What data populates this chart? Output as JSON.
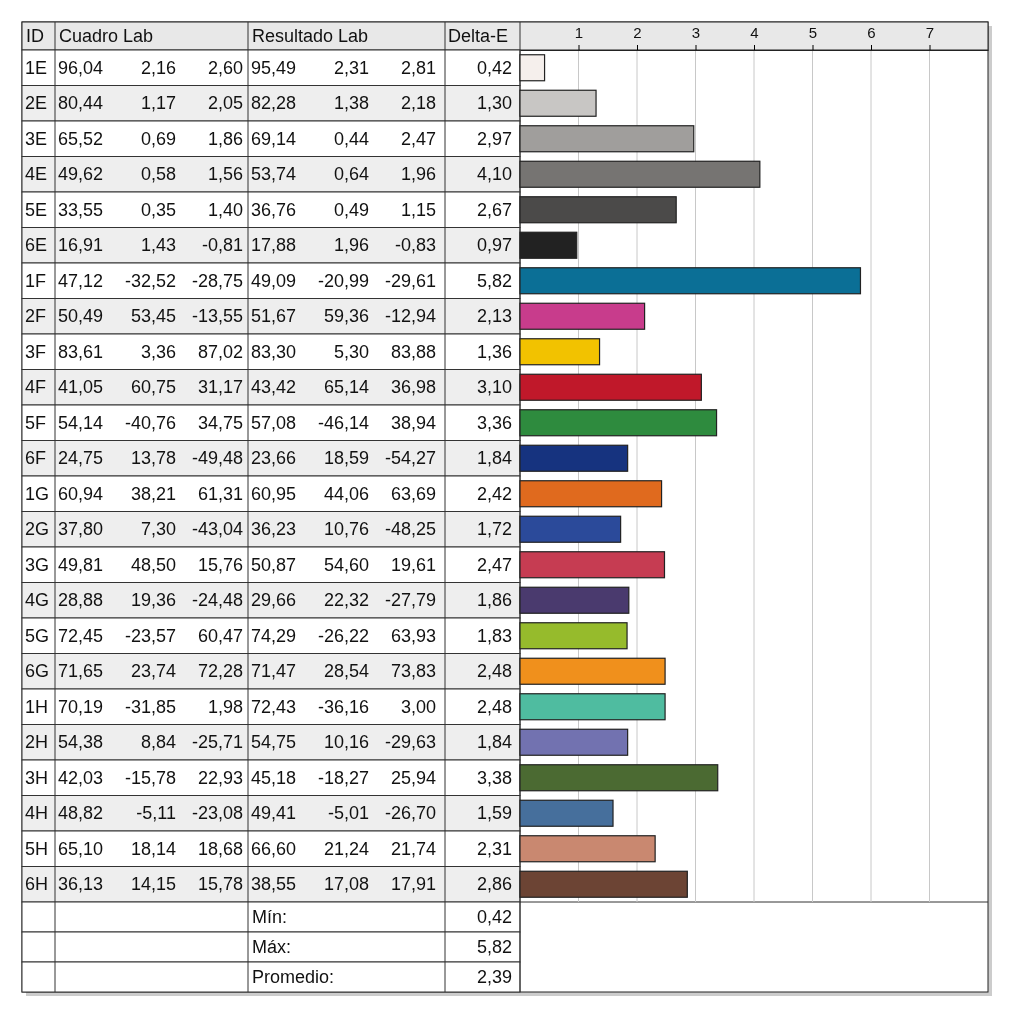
{
  "chart_data": {
    "type": "bar",
    "orientation": "horizontal",
    "categories": [
      "1E",
      "2E",
      "3E",
      "4E",
      "5E",
      "6E",
      "1F",
      "2F",
      "3F",
      "4F",
      "5F",
      "6F",
      "1G",
      "2G",
      "3G",
      "4G",
      "5G",
      "6G",
      "1H",
      "2H",
      "3H",
      "4H",
      "5H",
      "6H"
    ],
    "values": [
      0.42,
      1.3,
      2.97,
      4.1,
      2.67,
      0.97,
      5.82,
      2.13,
      1.36,
      3.1,
      3.36,
      1.84,
      2.42,
      1.72,
      2.47,
      1.86,
      1.83,
      2.48,
      2.48,
      1.84,
      3.38,
      1.59,
      2.31,
      2.86
    ],
    "value_labels": [
      "0,42",
      "1,30",
      "2,97",
      "4,10",
      "2,67",
      "0,97",
      "5,82",
      "2,13",
      "1,36",
      "3,10",
      "3,36",
      "1,84",
      "2,42",
      "1,72",
      "2,47",
      "1,86",
      "1,83",
      "2,48",
      "2,48",
      "1,84",
      "3,38",
      "1,59",
      "2,31",
      "2,86"
    ],
    "colors": [
      "#f5efec",
      "#c8c6c4",
      "#a09e9c",
      "#767472",
      "#4b4a49",
      "#222222",
      "#0b6f96",
      "#c83c8c",
      "#f2c200",
      "#c0182a",
      "#2e8b3e",
      "#16337f",
      "#e06a1e",
      "#2b4a9a",
      "#c63c52",
      "#4a3a6e",
      "#96bb2c",
      "#f0901c",
      "#4fbca0",
      "#7272b0",
      "#4b6a32",
      "#466f9c",
      "#c98870",
      "#6c4434"
    ],
    "x2lim": [
      0,
      8
    ],
    "x2ticks": [
      1,
      2,
      3,
      4,
      5,
      6,
      7
    ],
    "grid": "x",
    "annotations": [
      "ID",
      "Cuadro Lab",
      "Resultado Lab",
      "Delta-E",
      "96,04 2,16 2,60",
      "95,49 2,31 2,81",
      "80,44 1,17 2,05",
      "82,28 1,38 2,18",
      "65,52 0,69 1,86",
      "69,14 0,44 2,47",
      "49,62 0,58 1,56",
      "53,74 0,64 1,96",
      "33,55 0,35 1,40",
      "36,76 0,49 1,15",
      "16,91 1,43 -0,81",
      "17,88 1,96 -0,83",
      "47,12 -32,52 -28,75",
      "49,09 -20,99 -29,61",
      "50,49 53,45 -13,55",
      "51,67 59,36 -12,94",
      "83,61 3,36 87,02",
      "83,30 5,30 83,88",
      "41,05 60,75 31,17",
      "43,42 65,14 36,98",
      "54,14 -40,76 34,75",
      "57,08 -46,14 38,94",
      "24,75 13,78 -49,48",
      "23,66 18,59 -54,27",
      "60,94 38,21 61,31",
      "60,95 44,06 63,69",
      "37,80 7,30 -43,04",
      "36,23 10,76 -48,25",
      "49,81 48,50 15,76",
      "50,87 54,60 19,61",
      "28,88 19,36 -24,48",
      "29,66 22,32 -27,79",
      "72,45 -23,57 60,47",
      "74,29 -26,22 63,93",
      "71,65 23,74 72,28",
      "71,47 28,54 73,83",
      "70,19 -31,85 1,98",
      "72,43 -36,16 3,00",
      "54,38 8,84 -25,71",
      "54,75 10,16 -29,63",
      "42,03 -15,78 22,93",
      "45,18 -18,27 25,94",
      "48,82 -5,11 -23,08",
      "49,41 -5,01 -26,70",
      "65,10 18,14 18,68",
      "66,60 21,24 21,74",
      "36,13 14,15 15,78",
      "38,55 17,08 17,91",
      "Mín:",
      "0,42",
      "Máx:",
      "5,82",
      "Promedio:",
      "2,39"
    ]
  }
}
